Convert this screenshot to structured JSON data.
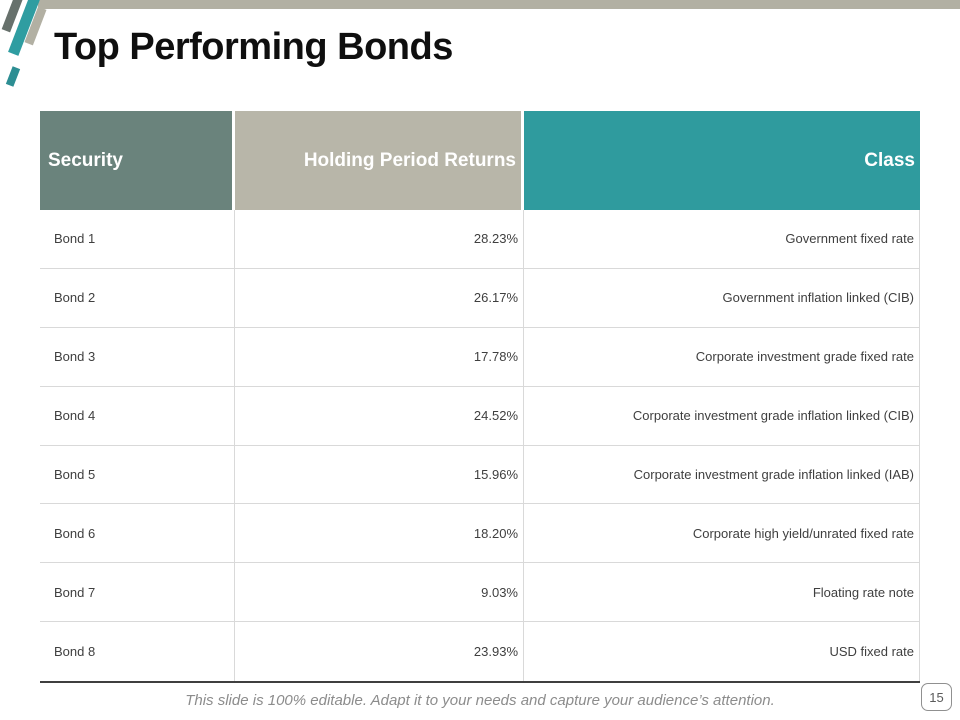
{
  "slide": {
    "title": "Top Performing Bonds",
    "footer_note": "This slide is 100% editable. Adapt it to your needs and capture your audience’s attention.",
    "page_number": "15"
  },
  "table": {
    "columns": [
      {
        "id": "security",
        "label": "Security",
        "align": "left",
        "header_bg": "#6A837C"
      },
      {
        "id": "returns",
        "label": "Holding Period Returns",
        "align": "right",
        "header_bg": "#B8B6A9"
      },
      {
        "id": "class",
        "label": "Class",
        "align": "right",
        "header_bg": "#2F9B9E"
      }
    ],
    "rows": [
      {
        "security": "Bond 1",
        "returns": "28.23%",
        "class": "Government fixed rate"
      },
      {
        "security": "Bond 2",
        "returns": "26.17%",
        "class": "Government inflation linked (CIB)"
      },
      {
        "security": "Bond 3",
        "returns": "17.78%",
        "class": "Corporate investment grade fixed rate"
      },
      {
        "security": "Bond 4",
        "returns": "24.52%",
        "class": "Corporate investment grade inflation linked (CIB)"
      },
      {
        "security": "Bond 5",
        "returns": "15.96%",
        "class": "Corporate investment grade inflation linked (IAB)"
      },
      {
        "security": "Bond 6",
        "returns": "18.20%",
        "class": "Corporate high yield/unrated fixed rate"
      },
      {
        "security": "Bond 7",
        "returns": "9.03%",
        "class": "Floating rate note"
      },
      {
        "security": "Bond 8",
        "returns": "23.93%",
        "class": "USD fixed rate"
      }
    ]
  },
  "colors": {
    "accent_teal": "#2F9B9E",
    "accent_green_gray": "#6A837C",
    "accent_tan": "#B2B0A3",
    "header_text": "#FFFFFF",
    "title_text": "#0F0F0F",
    "body_text": "#3F3F3F",
    "row_border": "#D9D9D9",
    "table_bottom_border": "#3F3F3F",
    "footer_text": "#8C8C8C"
  }
}
